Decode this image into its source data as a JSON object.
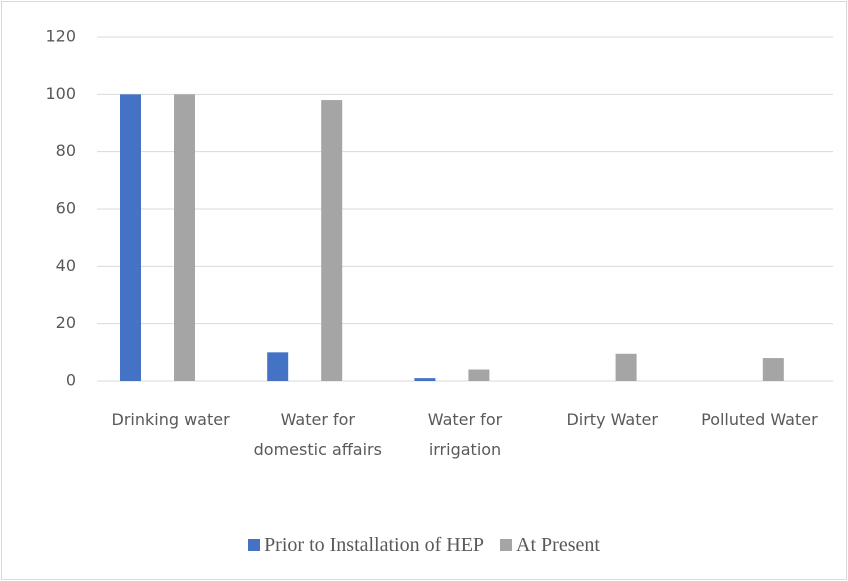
{
  "chart_data": {
    "type": "bar",
    "categories": [
      "Drinking water",
      "Water for domestic affairs",
      "Water for irrigation",
      "Dirty Water",
      "Polluted Water"
    ],
    "series": [
      {
        "name": "Prior to Installation of HEP",
        "color": "#4472c4",
        "values": [
          100,
          10,
          1,
          0,
          0
        ]
      },
      {
        "name": "At Present",
        "color": "#a5a5a5",
        "values": [
          100,
          98,
          4,
          9.5,
          8
        ]
      }
    ],
    "ylim": [
      0,
      120
    ],
    "yticks": [
      0,
      20,
      40,
      60,
      80,
      100,
      120
    ],
    "grid": true,
    "legend": "bottom"
  }
}
